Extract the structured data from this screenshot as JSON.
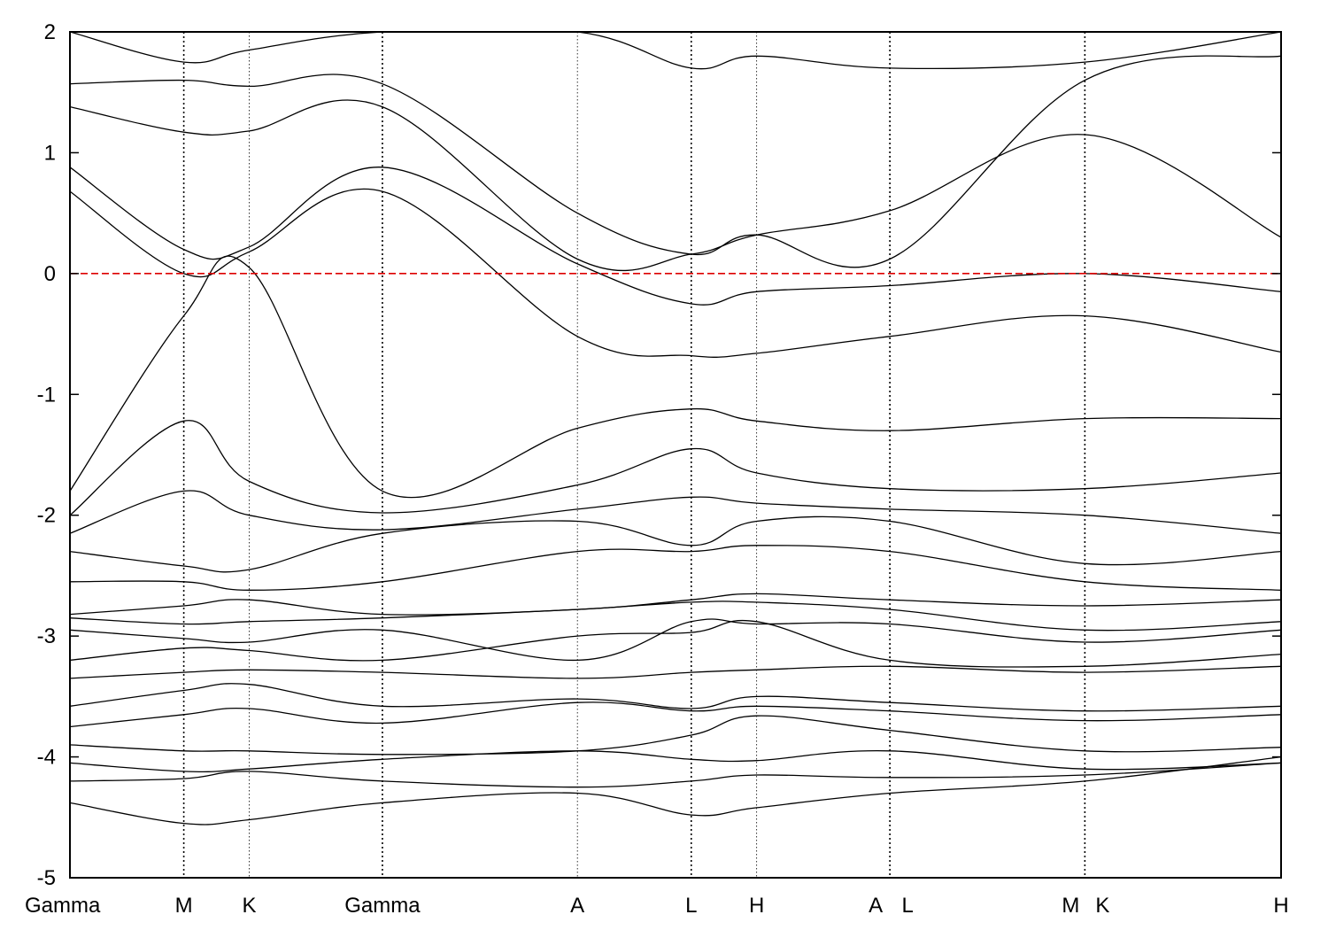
{
  "chart_data": {
    "type": "line",
    "title": "",
    "xlabel": "",
    "ylabel": "",
    "ylim": [
      -5,
      2
    ],
    "y_ticks": [
      2,
      1,
      0,
      -1,
      -2,
      -3,
      -4,
      -5
    ],
    "y_tick_labels": [
      "2",
      "1",
      "0",
      "-1",
      "-2",
      "-3",
      "-4",
      "-5"
    ],
    "x_range": [
      0,
      10.0
    ],
    "kpoints": [
      {
        "label": "Gamma",
        "x": 0.0,
        "line": "none"
      },
      {
        "label": "M",
        "x": 0.94,
        "line": "bold"
      },
      {
        "label": "K",
        "x": 1.48,
        "line": "thin"
      },
      {
        "label": "Gamma",
        "x": 2.58,
        "line": "bold"
      },
      {
        "label": "A",
        "x": 4.19,
        "line": "thin"
      },
      {
        "label": "L",
        "x": 5.13,
        "line": "bold"
      },
      {
        "label": "H",
        "x": 5.67,
        "line": "thin"
      },
      {
        "label": "A",
        "x": 6.77,
        "line": "bold"
      },
      {
        "label": "L",
        "x": 6.77,
        "line": "none"
      },
      {
        "label": "M",
        "x": 8.38,
        "line": "bold"
      },
      {
        "label": "K",
        "x": 8.38,
        "line": "none"
      },
      {
        "label": "H",
        "x": 10.0,
        "line": "none"
      }
    ],
    "fermi_level": 0,
    "fermi_color": "#dd0000",
    "line_color": "#000000",
    "grid": false,
    "series": [
      {
        "x": [
          0,
          0.94,
          1.48,
          2.58,
          4.19,
          5.13,
          5.67,
          6.77,
          8.38,
          10.0
        ],
        "y": [
          -4.38,
          -4.55,
          -4.52,
          -4.38,
          -4.3,
          -4.48,
          -4.42,
          -4.3,
          -4.2,
          -4.0
        ]
      },
      {
        "x": [
          0,
          0.94,
          1.48,
          2.58,
          4.19,
          5.13,
          5.67,
          6.77,
          8.38,
          10.0
        ],
        "y": [
          -4.2,
          -4.18,
          -4.12,
          -4.2,
          -4.25,
          -4.2,
          -4.15,
          -4.17,
          -4.15,
          -4.05
        ]
      },
      {
        "x": [
          0,
          0.94,
          1.48,
          2.58,
          4.19,
          5.13,
          5.67,
          6.77,
          8.38,
          10.0
        ],
        "y": [
          -4.05,
          -4.12,
          -4.1,
          -4.02,
          -3.95,
          -4.02,
          -4.03,
          -3.95,
          -4.1,
          -4.05
        ]
      },
      {
        "x": [
          0,
          0.94,
          1.48,
          2.58,
          4.19,
          5.13,
          5.67,
          6.77,
          8.38,
          10.0
        ],
        "y": [
          -3.9,
          -3.95,
          -3.95,
          -3.98,
          -3.95,
          -3.82,
          -3.66,
          -3.78,
          -3.95,
          -3.92
        ]
      },
      {
        "x": [
          0,
          0.94,
          1.48,
          2.58,
          4.19,
          5.13,
          5.67,
          6.77,
          8.38,
          10.0
        ],
        "y": [
          -3.75,
          -3.65,
          -3.6,
          -3.72,
          -3.55,
          -3.62,
          -3.58,
          -3.62,
          -3.7,
          -3.65
        ]
      },
      {
        "x": [
          0,
          0.94,
          1.48,
          2.58,
          4.19,
          5.13,
          5.67,
          6.77,
          8.38,
          10.0
        ],
        "y": [
          -3.58,
          -3.45,
          -3.4,
          -3.58,
          -3.52,
          -3.6,
          -3.5,
          -3.55,
          -3.62,
          -3.58
        ]
      },
      {
        "x": [
          0,
          0.94,
          1.48,
          2.58,
          4.19,
          5.13,
          5.67,
          6.77,
          8.38,
          10.0
        ],
        "y": [
          -3.35,
          -3.3,
          -3.28,
          -3.3,
          -3.35,
          -3.3,
          -3.28,
          -3.25,
          -3.3,
          -3.25
        ]
      },
      {
        "x": [
          0,
          0.94,
          1.48,
          2.58,
          4.19,
          5.13,
          5.67,
          6.77,
          8.38,
          10.0
        ],
        "y": [
          -3.2,
          -3.1,
          -3.12,
          -3.2,
          -3.0,
          -2.97,
          -2.88,
          -3.2,
          -3.25,
          -3.15
        ]
      },
      {
        "x": [
          0,
          0.94,
          1.48,
          2.58,
          4.19,
          5.13,
          5.67,
          6.77,
          8.38,
          10.0
        ],
        "y": [
          -2.95,
          -3.02,
          -3.05,
          -2.95,
          -3.2,
          -2.88,
          -2.9,
          -2.9,
          -3.05,
          -2.95
        ]
      },
      {
        "x": [
          0,
          0.94,
          1.48,
          2.58,
          4.19,
          5.13,
          5.67,
          6.77,
          8.38,
          10.0
        ],
        "y": [
          -2.85,
          -2.9,
          -2.88,
          -2.85,
          -2.78,
          -2.72,
          -2.72,
          -2.78,
          -2.95,
          -2.88
        ]
      },
      {
        "x": [
          0,
          0.94,
          1.48,
          2.58,
          4.19,
          5.13,
          5.67,
          6.77,
          8.38,
          10.0
        ],
        "y": [
          -2.82,
          -2.75,
          -2.7,
          -2.82,
          -2.78,
          -2.7,
          -2.65,
          -2.7,
          -2.75,
          -2.7
        ]
      },
      {
        "x": [
          0,
          0.94,
          1.48,
          2.58,
          4.19,
          5.13,
          5.67,
          6.77,
          8.38,
          10.0
        ],
        "y": [
          -2.55,
          -2.55,
          -2.62,
          -2.55,
          -2.3,
          -2.3,
          -2.25,
          -2.3,
          -2.55,
          -2.62
        ]
      },
      {
        "x": [
          0,
          0.94,
          1.48,
          2.58,
          4.19,
          5.13,
          5.67,
          6.77,
          8.38,
          10.0
        ],
        "y": [
          -2.3,
          -2.42,
          -2.45,
          -2.15,
          -2.05,
          -2.25,
          -2.05,
          -2.05,
          -2.4,
          -2.3
        ]
      },
      {
        "x": [
          0,
          0.94,
          1.48,
          2.58,
          4.19,
          5.13,
          5.67,
          6.77,
          8.38,
          10.0
        ],
        "y": [
          -2.15,
          -1.8,
          -2.0,
          -2.12,
          -1.95,
          -1.85,
          -1.9,
          -1.95,
          -2.0,
          -2.15
        ]
      },
      {
        "x": [
          0,
          0.94,
          1.48,
          2.58,
          4.19,
          5.13,
          5.67,
          6.77,
          8.38,
          10.0
        ],
        "y": [
          -2.0,
          -1.22,
          -1.72,
          -1.98,
          -1.75,
          -1.45,
          -1.65,
          -1.78,
          -1.78,
          -1.65
        ]
      },
      {
        "x": [
          0,
          0.94,
          1.48,
          2.58,
          4.19,
          5.13,
          5.67,
          6.77,
          8.38,
          10.0
        ],
        "y": [
          -1.8,
          -0.35,
          0.05,
          -1.8,
          -1.28,
          -1.12,
          -1.22,
          -1.3,
          -1.2,
          -1.2
        ]
      },
      {
        "x": [
          0,
          0.94,
          1.48,
          2.58,
          4.19,
          5.13,
          5.67,
          6.77,
          8.38,
          10.0
        ],
        "y": [
          0.68,
          0.0,
          0.18,
          0.68,
          -0.52,
          -0.68,
          -0.66,
          -0.52,
          -0.35,
          -0.65
        ]
      },
      {
        "x": [
          0,
          0.94,
          1.48,
          2.58,
          4.19,
          5.13,
          5.67,
          6.77,
          8.38,
          10.0
        ],
        "y": [
          0.88,
          0.2,
          0.22,
          0.88,
          0.08,
          -0.25,
          -0.15,
          -0.1,
          0.0,
          -0.15
        ]
      },
      {
        "x": [
          0,
          0.94,
          1.48,
          2.58,
          4.19,
          5.13,
          5.67,
          6.77,
          8.38,
          10.0
        ],
        "y": [
          1.38,
          1.17,
          1.18,
          1.38,
          0.12,
          0.16,
          0.32,
          0.52,
          1.15,
          0.3
        ]
      },
      {
        "x": [
          0,
          0.94,
          1.48,
          2.58,
          4.19,
          5.13,
          5.67,
          6.77,
          8.38,
          10.0
        ],
        "y": [
          1.57,
          1.6,
          1.55,
          1.57,
          0.5,
          0.16,
          0.32,
          0.12,
          1.6,
          1.8
        ]
      },
      {
        "x": [
          0,
          0.94,
          1.48,
          2.58,
          4.19,
          5.13,
          5.67,
          6.77,
          8.38,
          10.0
        ],
        "y": [
          2.0,
          1.75,
          1.85,
          2.0,
          2.0,
          1.7,
          1.8,
          1.7,
          1.75,
          2.0
        ]
      }
    ]
  }
}
